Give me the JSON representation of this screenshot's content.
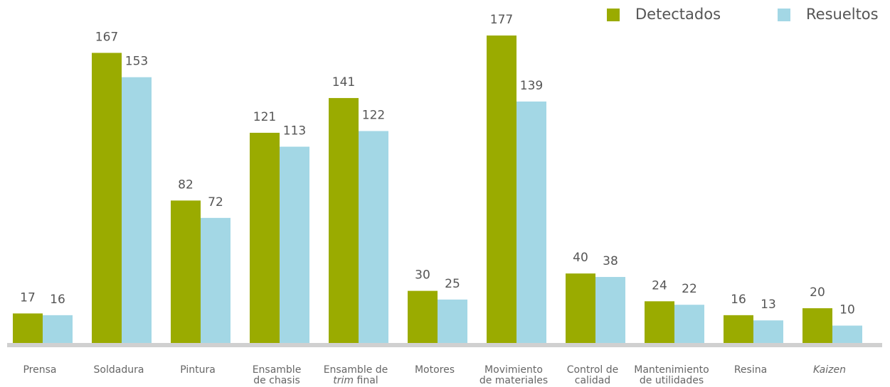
{
  "chart_data": {
    "type": "bar",
    "categories": [
      [
        "Prensa"
      ],
      [
        "Soldadura"
      ],
      [
        "Pintura"
      ],
      [
        "Ensamble",
        "de chasis"
      ],
      [
        "Ensamble de",
        "trim final"
      ],
      [
        "Motores"
      ],
      [
        "Movimiento",
        "de materiales"
      ],
      [
        "Control de",
        "calidad"
      ],
      [
        "Mantenimiento",
        "de utilidades"
      ],
      [
        "Resina"
      ],
      [
        "Kaizen"
      ]
    ],
    "italic_words": [
      "trim",
      "Kaizen"
    ],
    "series": [
      {
        "name": "Detectados",
        "color": "#9aab00",
        "values": [
          17,
          167,
          82,
          121,
          141,
          30,
          177,
          40,
          24,
          16,
          20
        ]
      },
      {
        "name": "Resueltos",
        "color": "#a3d7e5",
        "values": [
          16,
          153,
          72,
          113,
          122,
          25,
          139,
          38,
          22,
          13,
          10
        ]
      }
    ],
    "legend": "top-right"
  }
}
